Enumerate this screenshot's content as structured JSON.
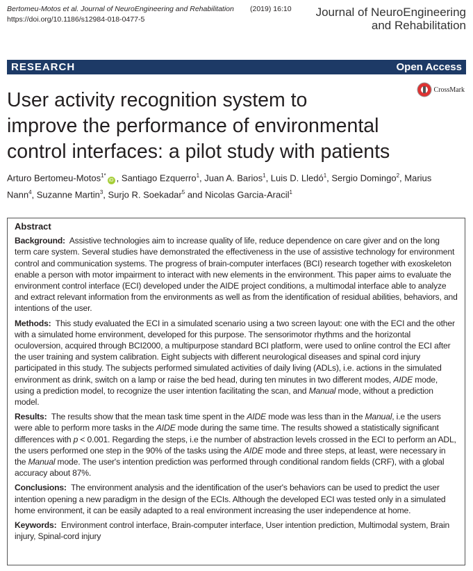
{
  "header": {
    "citation": "Bertomeu-Motos et al. Journal of NeuroEngineering and Rehabilitation",
    "volume": "(2019) 16:10",
    "doi": "https://doi.org/10.1186/s12984-018-0477-5",
    "journal_lines": [
      "Journal of NeuroEngineering",
      "and Rehabilitation"
    ]
  },
  "banner": {
    "type": "RESEARCH",
    "access": "Open Access"
  },
  "crossmark": "CrossMark",
  "title_lines": [
    "User activity recognition system to",
    "improve the performance of environmental",
    "control interfaces: a pilot study with patients"
  ],
  "authors": [
    {
      "name": "Arturo Bertomeu-Motos",
      "aff": "1*",
      "sep": ", "
    },
    {
      "name": "Santiago Ezquerro",
      "aff": "1",
      "sep": ", "
    },
    {
      "name": "Juan A. Barios",
      "aff": "1",
      "sep": ", "
    },
    {
      "name": "Luis D. Lledó",
      "aff": "1",
      "sep": ", "
    },
    {
      "name": "Sergio Domingo",
      "aff": "2",
      "sep": ", "
    },
    {
      "name": "Marius Nann",
      "aff": "4",
      "sep": ", "
    },
    {
      "name": "Suzanne Martin",
      "aff": "3",
      "sep": ", "
    },
    {
      "name": "Surjo R. Soekadar",
      "aff": "5",
      "sep": " and "
    },
    {
      "name": "Nicolas Garcia-Aracil",
      "aff": "1"
    }
  ],
  "abstract": {
    "heading": "Abstract",
    "sections": [
      {
        "label": "Background:",
        "runs": [
          "Assistive technologies aim to increase quality of life, reduce dependence on care giver and on the long term care system. Several studies have demonstrated the effectiveness in the use of assistive technology for environment control and communication systems. The progress of brain-computer interfaces (BCI) research together with exoskeleton enable a person with motor impairment to interact with new elements in the environment. This paper aims to evaluate the environment control interface (ECI) developed under the AIDE project conditions, a multimodal interface able to analyze and extract relevant information from the environments as well as from the identification of residual abilities, behaviors, and intentions of the user."
        ]
      },
      {
        "label": "Methods:",
        "runs": [
          "This study evaluated the ECI in a simulated scenario using a two screen layout: one with the ECI and the other with a simulated home environment, developed for this purpose. The sensorimotor rhythms and the horizontal oculoversion, acquired through BCI2000, a multipurpose standard BCI platform, were used to online control the ECI after the user training and system calibration. Eight subjects with different neurological diseases and spinal cord injury participated in this study. The subjects performed simulated activities of daily living (ADLs), i.e. actions in the simulated environment as drink, switch on a lamp or raise the bed head, during ten minutes in two different modes, ",
          "AIDE",
          " mode, using a prediction model, to recognize the user intention facilitating the scan, and ",
          "Manual",
          " mode, without a prediction model."
        ]
      },
      {
        "label": "Results:",
        "runs": [
          "The results show that the mean task time spent in the ",
          "AIDE",
          " mode was less than in the ",
          "Manual",
          ", i.e the users were able to perform more tasks in the ",
          "AIDE",
          " mode during the same time. The results showed a statistically significant differences with ",
          "p",
          " < 0.001. Regarding the steps, i.e the number of abstraction levels crossed in the ECI to perform an ADL, the users performed one step in the 90% of the tasks using the ",
          "AIDE",
          " mode and three steps, at least, were necessary in the ",
          "Manual",
          " mode. The user's intention prediction was performed through conditional random fields (CRF), with a global accuracy about 87%."
        ]
      },
      {
        "label": "Conclusions:",
        "runs": [
          "The environment analysis and the identification of the user's behaviors can be used to predict the user intention opening a new paradigm in the design of the ECIs. Although the developed ECI was tested only in a simulated home environment, it can be easily adapted to a real environment increasing the user independence at home."
        ]
      },
      {
        "label": "Keywords:",
        "runs": [
          "Environment control interface, Brain-computer interface, User intention prediction, Multimodal system, Brain injury, Spinal-cord injury"
        ]
      }
    ]
  }
}
